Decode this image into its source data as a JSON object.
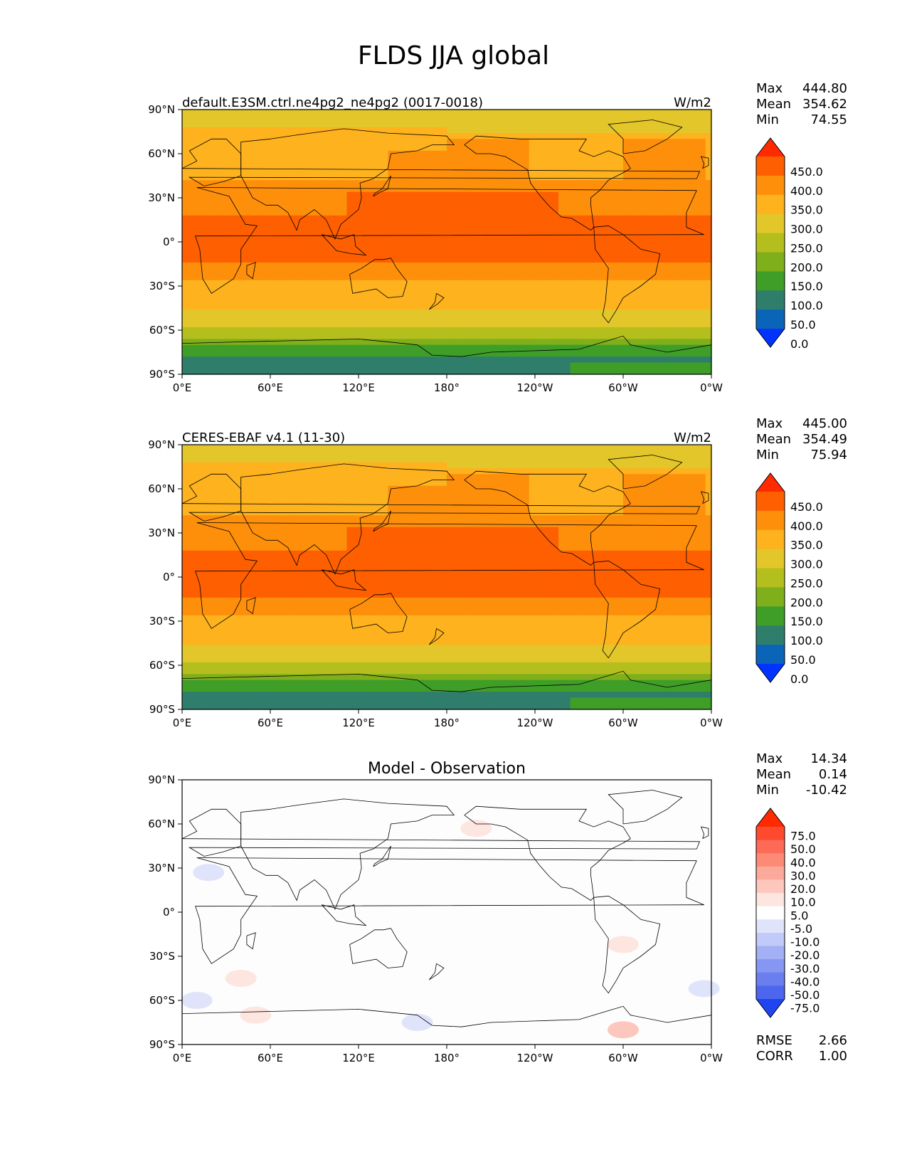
{
  "title": "FLDS JJA global",
  "lat_ticks": [
    "90°N",
    "60°N",
    "30°N",
    "0°",
    "30°S",
    "60°S",
    "90°S"
  ],
  "lon_ticks": [
    "0°E",
    "60°E",
    "120°E",
    "180°",
    "120°W",
    "60°W",
    "0°W"
  ],
  "panels": [
    {
      "title": "default.E3SM.ctrl.ne4pg2_ne4pg2 (0017-0018)",
      "units": "W/m2",
      "stats": [
        {
          "label": "Max",
          "value": "444.80"
        },
        {
          "label": "Mean",
          "value": "354.62"
        },
        {
          "label": "Min",
          "value": "74.55"
        }
      ],
      "colorbar": {
        "labels": [
          "450.0",
          "400.0",
          "350.0",
          "300.0",
          "250.0",
          "200.0",
          "150.0",
          "100.0",
          "50.0",
          "0.0"
        ],
        "colors": [
          "#ff2a00",
          "#fe5f00",
          "#fe8f0b",
          "#fdb21e",
          "#e3c62a",
          "#b4bf1e",
          "#7faf1a",
          "#3f9e28",
          "#2f7e6b",
          "#0a65b8",
          "#0033ff"
        ]
      }
    },
    {
      "title": "CERES-EBAF v4.1 (11-30)",
      "units": "W/m2",
      "stats": [
        {
          "label": "Max",
          "value": "445.00"
        },
        {
          "label": "Mean",
          "value": "354.49"
        },
        {
          "label": "Min",
          "value": "75.94"
        }
      ],
      "colorbar": {
        "labels": [
          "450.0",
          "400.0",
          "350.0",
          "300.0",
          "250.0",
          "200.0",
          "150.0",
          "100.0",
          "50.0",
          "0.0"
        ],
        "colors": [
          "#ff2a00",
          "#fe5f00",
          "#fe8f0b",
          "#fdb21e",
          "#e3c62a",
          "#b4bf1e",
          "#7faf1a",
          "#3f9e28",
          "#2f7e6b",
          "#0a65b8",
          "#0033ff"
        ]
      }
    },
    {
      "title": "Model - Observation",
      "units": "",
      "stats": [
        {
          "label": "Max",
          "value": "14.34"
        },
        {
          "label": "Mean",
          "value": "0.14"
        },
        {
          "label": "Min",
          "value": "-10.42"
        }
      ],
      "colorbar": {
        "labels": [
          "75.0",
          "50.0",
          "40.0",
          "30.0",
          "20.0",
          "10.0",
          "5.0",
          "-5.0",
          "-10.0",
          "-20.0",
          "-30.0",
          "-40.0",
          "-50.0",
          "-75.0"
        ],
        "colors": [
          "#ff2a00",
          "#fe4a2e",
          "#fd6a55",
          "#fc8a75",
          "#fba99a",
          "#fcc7bd",
          "#fde5e0",
          "#ffffff",
          "#dfe4fb",
          "#c1caf8",
          "#a3b0f5",
          "#8597f2",
          "#6a7ef0",
          "#4d66ee",
          "#1f45f0"
        ]
      },
      "metrics": [
        {
          "label": "RMSE",
          "value": "2.66"
        },
        {
          "label": "CORR",
          "value": "1.00"
        }
      ]
    }
  ],
  "chart_data": [
    {
      "type": "heatmap",
      "title": "default.E3SM.ctrl.ne4pg2_ne4pg2 (0017-0018)",
      "units": "W/m2",
      "xlim": [
        0,
        360
      ],
      "ylim": [
        -90,
        90
      ],
      "contour_levels": [
        0,
        50,
        100,
        150,
        200,
        250,
        300,
        350,
        400,
        450
      ],
      "zonal_profile": [
        {
          "lat_range": [
            70,
            90
          ],
          "value": 275
        },
        {
          "lat_range": [
            40,
            70
          ],
          "value": 325
        },
        {
          "lat_range": [
            15,
            40
          ],
          "value": 375
        },
        {
          "lat_range": [
            -15,
            15
          ],
          "value": 410
        },
        {
          "lat_range": [
            -40,
            -15
          ],
          "value": 360
        },
        {
          "lat_range": [
            -55,
            -40
          ],
          "value": 320
        },
        {
          "lat_range": [
            -65,
            -55
          ],
          "value": 260
        },
        {
          "lat_range": [
            -75,
            -65
          ],
          "value": 170
        },
        {
          "lat_range": [
            -90,
            -75
          ],
          "value": 110
        }
      ],
      "stats": {
        "max": 444.8,
        "mean": 354.62,
        "min": 74.55
      }
    },
    {
      "type": "heatmap",
      "title": "CERES-EBAF v4.1 (11-30)",
      "units": "W/m2",
      "xlim": [
        0,
        360
      ],
      "ylim": [
        -90,
        90
      ],
      "contour_levels": [
        0,
        50,
        100,
        150,
        200,
        250,
        300,
        350,
        400,
        450
      ],
      "zonal_profile": [
        {
          "lat_range": [
            70,
            90
          ],
          "value": 275
        },
        {
          "lat_range": [
            40,
            70
          ],
          "value": 325
        },
        {
          "lat_range": [
            15,
            40
          ],
          "value": 375
        },
        {
          "lat_range": [
            -15,
            15
          ],
          "value": 410
        },
        {
          "lat_range": [
            -40,
            -15
          ],
          "value": 360
        },
        {
          "lat_range": [
            -55,
            -40
          ],
          "value": 320
        },
        {
          "lat_range": [
            -65,
            -55
          ],
          "value": 260
        },
        {
          "lat_range": [
            -75,
            -65
          ],
          "value": 170
        },
        {
          "lat_range": [
            -90,
            -75
          ],
          "value": 110
        }
      ],
      "stats": {
        "max": 445.0,
        "mean": 354.49,
        "min": 75.94
      }
    },
    {
      "type": "heatmap",
      "title": "Model - Observation",
      "xlim": [
        0,
        360
      ],
      "ylim": [
        -90,
        90
      ],
      "contour_levels": [
        -75,
        -50,
        -40,
        -30,
        -20,
        -10,
        -5,
        5,
        10,
        20,
        30,
        40,
        50,
        75
      ],
      "anomalies": [
        {
          "lon": 18,
          "lat": 27,
          "value": -7
        },
        {
          "lon": 10,
          "lat": -60,
          "value": -7
        },
        {
          "lon": 200,
          "lat": 57,
          "value": 7
        },
        {
          "lon": 300,
          "lat": -22,
          "value": 7
        },
        {
          "lon": 40,
          "lat": -45,
          "value": 7
        },
        {
          "lon": 50,
          "lat": -70,
          "value": 7
        },
        {
          "lon": 300,
          "lat": -80,
          "value": 10
        },
        {
          "lon": 355,
          "lat": -52,
          "value": -6
        },
        {
          "lon": 160,
          "lat": -75,
          "value": -6
        }
      ],
      "stats": {
        "max": 14.34,
        "mean": 0.14,
        "min": -10.42,
        "rmse": 2.66,
        "corr": 1.0
      }
    }
  ]
}
